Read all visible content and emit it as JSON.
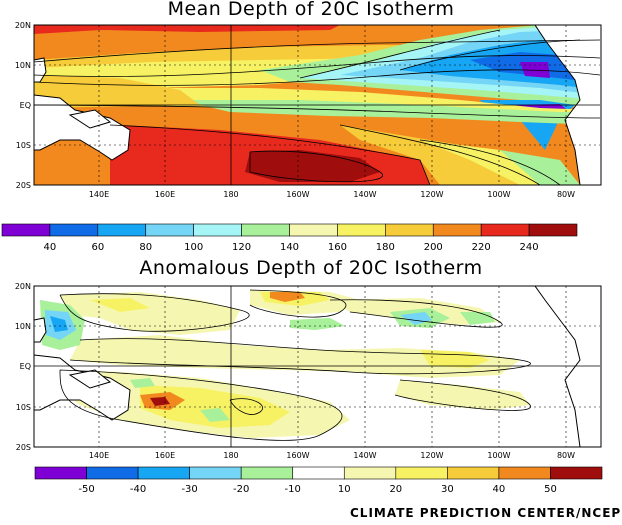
{
  "figure": {
    "credit": "CLIMATE PREDICTION CENTER/NCEP",
    "longitude_ticks": [
      "140E",
      "160E",
      "180",
      "160W",
      "140W",
      "120W",
      "100W",
      "80W"
    ],
    "latitude_ticks": [
      "20N",
      "10N",
      "EQ",
      "10S",
      "20S"
    ]
  },
  "panels": [
    {
      "title": "Mean Depth of 20C Isotherm",
      "colorbar": {
        "labels": [
          "40",
          "60",
          "80",
          "100",
          "120",
          "140",
          "160",
          "180",
          "200",
          "220",
          "240"
        ],
        "colors": [
          "#7f00d5",
          "#0f6be6",
          "#17a6f4",
          "#74d5f7",
          "#a5f5f7",
          "#a8f09a",
          "#f5f7b0",
          "#f7f264",
          "#f6cc3a",
          "#f2891f",
          "#e8291d",
          "#a00d0d"
        ]
      }
    },
    {
      "title": "Anomalous Depth of 20C Isotherm",
      "colorbar": {
        "labels": [
          "-50",
          "-40",
          "-30",
          "-20",
          "-10",
          "10",
          "20",
          "30",
          "40",
          "50"
        ],
        "colors": [
          "#7f00d5",
          "#0f6be6",
          "#17a6f4",
          "#74d5f7",
          "#a8f09a",
          "#ffffff",
          "#f5f7b0",
          "#f7f264",
          "#f6cc3a",
          "#f2891f",
          "#a00d0d"
        ]
      }
    }
  ]
}
